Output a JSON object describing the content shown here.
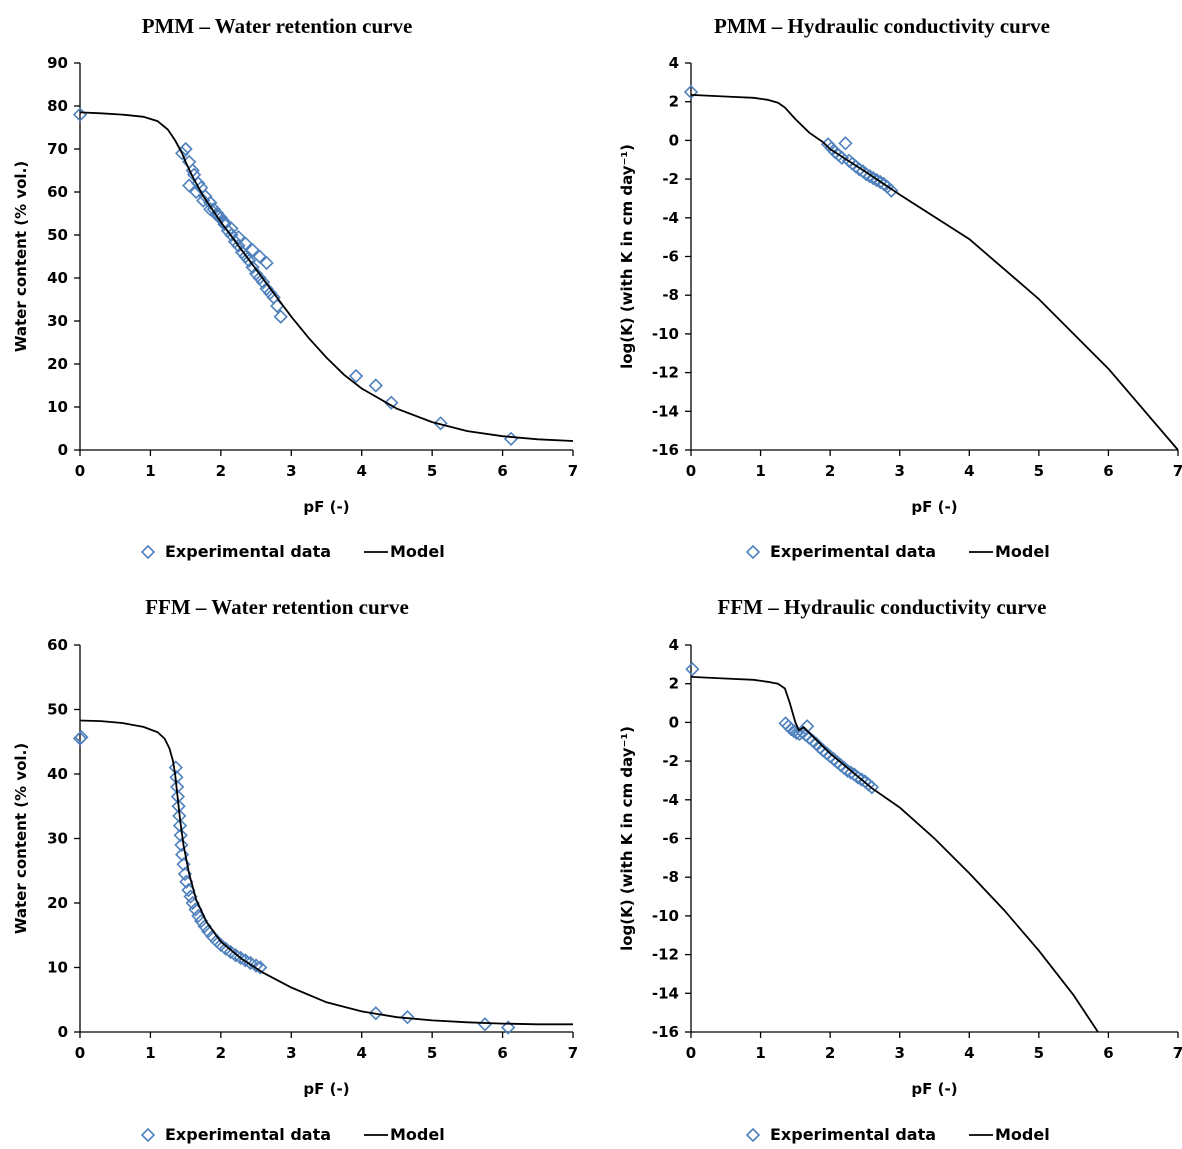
{
  "chart_data": [
    {
      "type": "scatter",
      "title": "PMM – Water retention curve",
      "xlabel": "pF (-)",
      "ylabel": "Water content (% vol.)",
      "xlim": [
        0,
        7
      ],
      "ylim": [
        0,
        90
      ],
      "xticks": [
        "0",
        "1",
        "2",
        "3",
        "4",
        "5",
        "6",
        "7"
      ],
      "yticks": [
        "0",
        "10",
        "20",
        "30",
        "40",
        "50",
        "60",
        "70",
        "80",
        "90"
      ],
      "legend": [
        "Experimental data",
        "Model"
      ],
      "legend_position": "bottom",
      "grid": false,
      "series": [
        {
          "name": "Experimental data",
          "style": "marker",
          "x": [
            0,
            1.45,
            1.5,
            1.55,
            1.6,
            1.62,
            1.68,
            1.72,
            1.78,
            1.85,
            1.9,
            1.95,
            2.0,
            2.05,
            2.1,
            2.15,
            2.2,
            2.25,
            2.3,
            2.35,
            2.4,
            2.45,
            2.5,
            2.55,
            2.6,
            2.65,
            2.7,
            2.75,
            2.8,
            2.85,
            1.55,
            1.65,
            1.75,
            1.85,
            1.95,
            2.05,
            2.15,
            2.25,
            2.35,
            2.45,
            2.55,
            2.65,
            3.92,
            4.2,
            4.42,
            5.12,
            6.12
          ],
          "y": [
            78,
            69,
            70,
            67,
            65,
            64,
            62,
            61,
            59,
            57.5,
            56,
            55,
            54,
            52.5,
            51,
            50,
            48.5,
            47.5,
            46,
            45,
            44,
            42.5,
            41,
            40,
            39,
            37.5,
            36.5,
            35.5,
            33.5,
            31,
            61.5,
            60,
            58,
            56,
            54.5,
            53,
            51.5,
            49.5,
            48,
            46.5,
            45,
            43.5,
            17.2,
            15,
            11,
            6.2,
            2.6
          ]
        },
        {
          "name": "Model",
          "style": "line",
          "x": [
            0,
            0.3,
            0.6,
            0.9,
            1.1,
            1.25,
            1.35,
            1.45,
            1.5,
            1.6,
            1.75,
            2.0,
            2.25,
            2.5,
            2.75,
            3.0,
            3.25,
            3.5,
            3.75,
            4.0,
            4.5,
            5.0,
            5.5,
            6.0,
            6.5,
            7.0
          ],
          "y": [
            78.5,
            78.3,
            78,
            77.5,
            76.5,
            74.5,
            72,
            69,
            67,
            63.5,
            59,
            53,
            47.5,
            42,
            36.5,
            31,
            26,
            21.5,
            17.5,
            14.3,
            9.6,
            6.5,
            4.4,
            3.2,
            2.5,
            2.1
          ]
        }
      ]
    },
    {
      "type": "scatter",
      "title": "PMM – Hydraulic conductivity curve",
      "xlabel": "pF (-)",
      "ylabel": "log(K) (with K in cm day⁻¹)",
      "xlim": [
        0,
        7
      ],
      "ylim": [
        -16,
        4
      ],
      "xticks": [
        "0",
        "1",
        "2",
        "3",
        "4",
        "5",
        "6",
        "7"
      ],
      "yticks": [
        "-16",
        "-14",
        "-12",
        "-10",
        "-8",
        "-6",
        "-4",
        "-2",
        "0",
        "2",
        "4"
      ],
      "legend": [
        "Experimental data",
        "Model"
      ],
      "legend_position": "bottom",
      "grid": false,
      "series": [
        {
          "name": "Experimental data",
          "style": "marker",
          "x": [
            0,
            1.97,
            2.02,
            2.07,
            2.12,
            2.17,
            2.22,
            2.27,
            2.32,
            2.37,
            2.42,
            2.47,
            2.52,
            2.57,
            2.62,
            2.67,
            2.72,
            2.77,
            2.82,
            2.88
          ],
          "y": [
            2.5,
            -0.2,
            -0.4,
            -0.6,
            -0.75,
            -0.9,
            -0.15,
            -1.05,
            -1.2,
            -1.35,
            -1.5,
            -1.6,
            -1.75,
            -1.85,
            -1.95,
            -2.05,
            -2.15,
            -2.25,
            -2.4,
            -2.6
          ]
        },
        {
          "name": "Model",
          "style": "line",
          "x": [
            0,
            0.3,
            0.6,
            0.9,
            1.1,
            1.25,
            1.35,
            1.5,
            1.7,
            1.9,
            2.0,
            2.5,
            3.0,
            4.0,
            5.0,
            6.0,
            7.0
          ],
          "y": [
            2.35,
            2.3,
            2.25,
            2.2,
            2.1,
            1.95,
            1.7,
            1.1,
            0.4,
            -0.1,
            -0.45,
            -1.6,
            -2.8,
            -5.1,
            -8.2,
            -11.8,
            -16
          ]
        }
      ]
    },
    {
      "type": "scatter",
      "title": "FFM – Water retention curve",
      "xlabel": "pF (-)",
      "ylabel": "Water content (% vol.)",
      "xlim": [
        0,
        7
      ],
      "ylim": [
        0,
        60
      ],
      "xticks": [
        "0",
        "1",
        "2",
        "3",
        "4",
        "5",
        "6",
        "7"
      ],
      "yticks": [
        "0",
        "10",
        "20",
        "30",
        "40",
        "50",
        "60"
      ],
      "legend": [
        "Experimental data",
        "Model"
      ],
      "legend_position": "bottom",
      "grid": false,
      "series": [
        {
          "name": "Experimental data",
          "style": "marker",
          "x": [
            0,
            0.02,
            1.36,
            1.37,
            1.38,
            1.39,
            1.4,
            1.41,
            1.42,
            1.43,
            1.44,
            1.45,
            1.47,
            1.49,
            1.51,
            1.54,
            1.57,
            1.6,
            1.64,
            1.68,
            1.72,
            1.77,
            1.82,
            1.88,
            1.94,
            2.0,
            2.07,
            2.14,
            2.21,
            2.28,
            2.35,
            2.42,
            2.5,
            2.56,
            4.2,
            4.65,
            5.75,
            6.08
          ],
          "y": [
            45.5,
            45.7,
            41,
            39.5,
            38,
            36.5,
            35,
            33.5,
            32,
            30.5,
            29,
            27.5,
            26,
            24.5,
            23.3,
            22,
            21,
            20,
            19,
            18,
            17.2,
            16.4,
            15.6,
            14.8,
            14.1,
            13.5,
            12.9,
            12.4,
            11.9,
            11.5,
            11.1,
            10.7,
            10.3,
            10,
            2.9,
            2.3,
            1.2,
            0.7
          ]
        },
        {
          "name": "Model",
          "style": "line",
          "x": [
            0,
            0.3,
            0.6,
            0.9,
            1.1,
            1.2,
            1.27,
            1.32,
            1.35,
            1.38,
            1.42,
            1.47,
            1.55,
            1.65,
            1.8,
            2.0,
            2.3,
            2.6,
            3.0,
            3.5,
            4.0,
            4.5,
            5.0,
            5.5,
            6.0,
            6.5,
            7.0
          ],
          "y": [
            48.3,
            48.2,
            47.9,
            47.3,
            46.5,
            45.5,
            44,
            42,
            40,
            37,
            33,
            29,
            24.5,
            20.5,
            17,
            14,
            11.3,
            9.2,
            6.9,
            4.6,
            3.2,
            2.3,
            1.8,
            1.5,
            1.3,
            1.2,
            1.2
          ]
        }
      ]
    },
    {
      "type": "scatter",
      "title": "FFM – Hydraulic conductivity curve",
      "xlabel": "pF (-)",
      "ylabel": "log(K) (with K in cm day⁻¹)",
      "xlim": [
        0,
        7
      ],
      "ylim": [
        -16,
        4
      ],
      "xticks": [
        "0",
        "1",
        "2",
        "3",
        "4",
        "5",
        "6",
        "7"
      ],
      "yticks": [
        "-16",
        "-14",
        "-12",
        "-10",
        "-8",
        "-6",
        "-4",
        "-2",
        "0",
        "2",
        "4"
      ],
      "legend": [
        "Experimental data",
        "Model"
      ],
      "legend_position": "bottom",
      "grid": false,
      "series": [
        {
          "name": "Experimental data",
          "style": "marker",
          "x": [
            0.02,
            1.36,
            1.4,
            1.44,
            1.48,
            1.52,
            1.56,
            1.6,
            1.65,
            1.67,
            1.7,
            1.75,
            1.8,
            1.85,
            1.9,
            1.95,
            2.0,
            2.05,
            2.1,
            2.15,
            2.2,
            2.25,
            2.3,
            2.35,
            2.4,
            2.45,
            2.5,
            2.55,
            2.6
          ],
          "y": [
            2.75,
            -0.05,
            -0.2,
            -0.35,
            -0.45,
            -0.55,
            -0.6,
            -0.5,
            -0.65,
            -0.2,
            -0.8,
            -0.95,
            -1.1,
            -1.3,
            -1.45,
            -1.6,
            -1.75,
            -1.9,
            -2.05,
            -2.2,
            -2.35,
            -2.5,
            -2.6,
            -2.7,
            -2.85,
            -2.95,
            -3.05,
            -3.2,
            -3.35
          ]
        },
        {
          "name": "Model",
          "style": "line",
          "x": [
            0,
            0.3,
            0.6,
            0.9,
            1.1,
            1.25,
            1.35,
            1.42,
            1.5,
            1.55,
            1.58,
            1.62,
            1.7,
            2.0,
            2.3,
            2.6,
            3.0,
            3.5,
            4.0,
            4.5,
            5.0,
            5.5,
            5.85
          ],
          "y": [
            2.35,
            2.3,
            2.25,
            2.2,
            2.1,
            2.0,
            1.75,
            1.0,
            0.0,
            -0.4,
            -0.35,
            -0.25,
            -0.55,
            -1.6,
            -2.5,
            -3.4,
            -4.4,
            -6.0,
            -7.8,
            -9.7,
            -11.8,
            -14.1,
            -16
          ]
        }
      ]
    }
  ]
}
